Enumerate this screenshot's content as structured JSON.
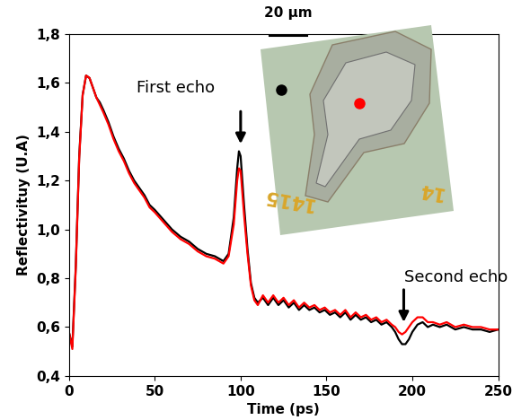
{
  "chart_data": {
    "type": "line",
    "xlabel": "Time (ps)",
    "ylabel": "Reflectivituy (U.A)",
    "x": [
      0,
      2,
      4,
      6,
      8,
      10,
      12,
      14,
      16,
      18,
      20,
      23,
      26,
      29,
      32,
      35,
      38,
      41,
      44,
      47,
      50,
      55,
      60,
      65,
      70,
      75,
      80,
      85,
      90,
      93,
      96,
      98,
      99,
      100,
      102,
      104,
      106,
      108,
      110,
      113,
      116,
      119,
      122,
      125,
      128,
      131,
      134,
      137,
      140,
      143,
      146,
      149,
      152,
      155,
      158,
      161,
      164,
      167,
      170,
      173,
      176,
      179,
      182,
      185,
      188,
      190,
      192,
      194,
      196,
      198,
      200,
      203,
      206,
      209,
      212,
      216,
      220,
      225,
      230,
      235,
      240,
      245,
      250
    ],
    "series": [
      {
        "color": "#000000",
        "values": [
          0.58,
          0.52,
          0.85,
          1.3,
          1.55,
          1.63,
          1.62,
          1.58,
          1.54,
          1.52,
          1.49,
          1.44,
          1.38,
          1.33,
          1.29,
          1.24,
          1.2,
          1.17,
          1.14,
          1.1,
          1.08,
          1.04,
          1.0,
          0.97,
          0.95,
          0.92,
          0.9,
          0.89,
          0.87,
          0.9,
          1.05,
          1.25,
          1.32,
          1.3,
          1.1,
          0.92,
          0.78,
          0.72,
          0.7,
          0.72,
          0.69,
          0.72,
          0.69,
          0.71,
          0.68,
          0.7,
          0.67,
          0.69,
          0.67,
          0.68,
          0.66,
          0.67,
          0.65,
          0.66,
          0.64,
          0.66,
          0.63,
          0.65,
          0.63,
          0.64,
          0.62,
          0.63,
          0.61,
          0.62,
          0.6,
          0.58,
          0.55,
          0.53,
          0.53,
          0.55,
          0.58,
          0.61,
          0.62,
          0.6,
          0.61,
          0.6,
          0.61,
          0.59,
          0.6,
          0.59,
          0.59,
          0.58,
          0.59
        ]
      },
      {
        "color": "#ff0000",
        "values": [
          0.58,
          0.51,
          0.84,
          1.29,
          1.55,
          1.63,
          1.62,
          1.58,
          1.54,
          1.51,
          1.48,
          1.43,
          1.37,
          1.32,
          1.28,
          1.23,
          1.19,
          1.16,
          1.13,
          1.09,
          1.07,
          1.03,
          0.99,
          0.96,
          0.94,
          0.91,
          0.89,
          0.88,
          0.86,
          0.89,
          1.02,
          1.2,
          1.25,
          1.24,
          1.06,
          0.9,
          0.77,
          0.71,
          0.69,
          0.73,
          0.7,
          0.73,
          0.7,
          0.72,
          0.69,
          0.71,
          0.68,
          0.7,
          0.68,
          0.69,
          0.67,
          0.68,
          0.66,
          0.67,
          0.65,
          0.67,
          0.64,
          0.66,
          0.64,
          0.65,
          0.63,
          0.64,
          0.62,
          0.63,
          0.61,
          0.6,
          0.58,
          0.57,
          0.58,
          0.6,
          0.62,
          0.64,
          0.64,
          0.62,
          0.62,
          0.61,
          0.62,
          0.6,
          0.61,
          0.6,
          0.6,
          0.59,
          0.59
        ]
      }
    ],
    "xlim": [
      0,
      250
    ],
    "xticks": [
      0,
      50,
      100,
      150,
      200,
      250
    ],
    "ylim": [
      0.4,
      1.8
    ],
    "yticks": [
      {
        "value": 0.4,
        "label": "0,4"
      },
      {
        "value": 0.6,
        "label": "0,6"
      },
      {
        "value": 0.8,
        "label": "0,8"
      },
      {
        "value": 1.0,
        "label": "1,0"
      },
      {
        "value": 1.2,
        "label": "1,2"
      },
      {
        "value": 1.4,
        "label": "1,4"
      },
      {
        "value": 1.6,
        "label": "1,6"
      },
      {
        "value": 1.8,
        "label": "1,8"
      }
    ],
    "annotations": [
      {
        "text": "First echo",
        "x": 100
      },
      {
        "text": "Second echo",
        "x": 195
      }
    ],
    "inset": {
      "scale_bar": "20 µm",
      "labels": [
        "1415",
        "14"
      ]
    }
  }
}
